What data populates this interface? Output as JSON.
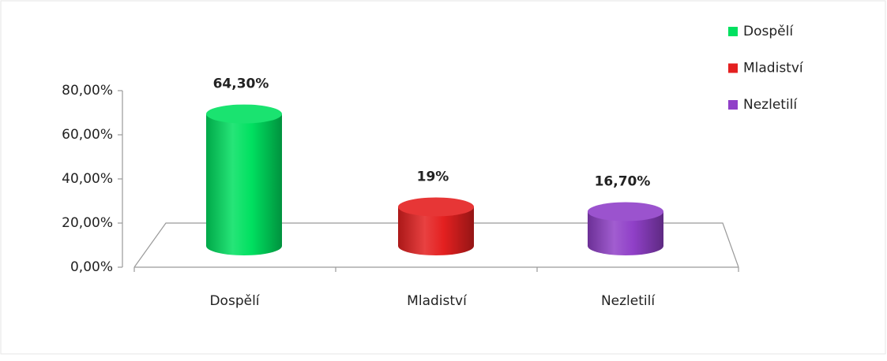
{
  "chart_data": {
    "type": "bar3d",
    "categories": [
      "Dospělí",
      "Mladiství",
      "Nezletilí"
    ],
    "values": [
      64.3,
      19,
      16.7
    ],
    "value_labels": [
      "64,30%",
      "19%",
      "16,70%"
    ],
    "colors": [
      "#00e060",
      "#e42020",
      "#9040c8"
    ],
    "ylim": [
      0,
      80
    ],
    "yticks": [
      {
        "value": 0,
        "label": "0,00%"
      },
      {
        "value": 20,
        "label": "20,00%"
      },
      {
        "value": 40,
        "label": "40,00%"
      },
      {
        "value": 60,
        "label": "60,00%"
      },
      {
        "value": 80,
        "label": "80,00%"
      }
    ],
    "legend": "top-right"
  }
}
